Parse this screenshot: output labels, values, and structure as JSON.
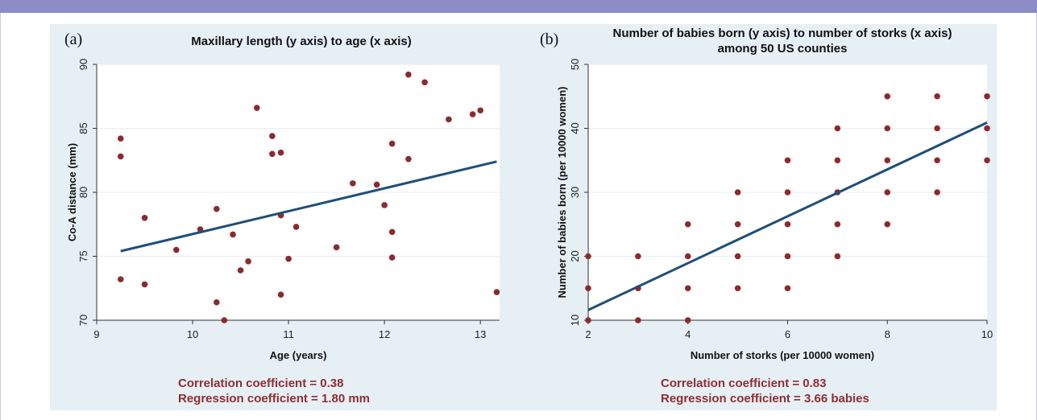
{
  "chart_data": [
    {
      "type": "scatter",
      "panel_label": "(a)",
      "title": "Maxillary length (y axis) to age (x axis)",
      "xlabel": "Age (years)",
      "ylabel": "Co-A distance (mm)",
      "xlim": [
        9,
        13.2
      ],
      "ylim": [
        70,
        90
      ],
      "x_ticks": [
        9,
        10,
        11,
        12,
        13
      ],
      "y_ticks": [
        70,
        75,
        80,
        85,
        90
      ],
      "grid": true,
      "points": [
        [
          9.25,
          84.2
        ],
        [
          9.25,
          82.8
        ],
        [
          9.25,
          73.2
        ],
        [
          9.5,
          78.0
        ],
        [
          9.5,
          72.8
        ],
        [
          9.83,
          75.5
        ],
        [
          10.08,
          77.1
        ],
        [
          10.25,
          78.7
        ],
        [
          10.25,
          71.4
        ],
        [
          10.33,
          70.0
        ],
        [
          10.42,
          76.7
        ],
        [
          10.5,
          73.9
        ],
        [
          10.58,
          74.6
        ],
        [
          10.67,
          86.6
        ],
        [
          10.83,
          84.4
        ],
        [
          10.83,
          83.0
        ],
        [
          10.92,
          83.1
        ],
        [
          10.92,
          78.2
        ],
        [
          10.92,
          72.0
        ],
        [
          11.0,
          74.8
        ],
        [
          11.08,
          77.3
        ],
        [
          11.5,
          75.7
        ],
        [
          11.67,
          80.7
        ],
        [
          11.92,
          80.6
        ],
        [
          12.0,
          79.0
        ],
        [
          12.08,
          83.8
        ],
        [
          12.08,
          76.9
        ],
        [
          12.08,
          74.9
        ],
        [
          12.25,
          89.2
        ],
        [
          12.25,
          82.6
        ],
        [
          12.42,
          88.6
        ],
        [
          12.67,
          85.7
        ],
        [
          12.92,
          86.1
        ],
        [
          13.0,
          86.4
        ],
        [
          13.17,
          72.2
        ]
      ],
      "fit_line": {
        "x": [
          9.25,
          13.17
        ],
        "y": [
          75.4,
          82.4
        ]
      },
      "annotations": [
        "Correlation coefficient = 0.38",
        "Regression coefficient = 1.80 mm"
      ],
      "colors": {
        "points": "#8b2a2e",
        "line": "#1f4e79"
      }
    },
    {
      "type": "scatter",
      "panel_label": "(b)",
      "title_lines": [
        "Number of babies born (y axis) to number of storks (x axis)",
        "among 50 US counties"
      ],
      "xlabel": "Number of storks (per 10000 women)",
      "ylabel": "Number of babies born (per 10000 women)",
      "xlim": [
        2,
        10
      ],
      "ylim": [
        10,
        50
      ],
      "x_ticks": [
        2,
        4,
        6,
        8,
        10
      ],
      "y_ticks": [
        10,
        20,
        30,
        40,
        50
      ],
      "grid": true,
      "points": [
        [
          2,
          10
        ],
        [
          2,
          15
        ],
        [
          2,
          20
        ],
        [
          3,
          10
        ],
        [
          3,
          15
        ],
        [
          3,
          20
        ],
        [
          4,
          10
        ],
        [
          4,
          15
        ],
        [
          4,
          20
        ],
        [
          4,
          25
        ],
        [
          5,
          15
        ],
        [
          5,
          20
        ],
        [
          5,
          25
        ],
        [
          5,
          30
        ],
        [
          6,
          15
        ],
        [
          6,
          20
        ],
        [
          6,
          25
        ],
        [
          6,
          30
        ],
        [
          6,
          35
        ],
        [
          7,
          20
        ],
        [
          7,
          25
        ],
        [
          7,
          30
        ],
        [
          7,
          35
        ],
        [
          7,
          40
        ],
        [
          8,
          25
        ],
        [
          8,
          30
        ],
        [
          8,
          35
        ],
        [
          8,
          40
        ],
        [
          8,
          45
        ],
        [
          9,
          30
        ],
        [
          9,
          35
        ],
        [
          9,
          40
        ],
        [
          9,
          45
        ],
        [
          10,
          35
        ],
        [
          10,
          40
        ],
        [
          10,
          45
        ]
      ],
      "fit_line": {
        "x": [
          2,
          10
        ],
        "y": [
          11.6,
          40.9
        ]
      },
      "annotations": [
        "Correlation coefficient = 0.83",
        "Regression coefficient = 3.66 babies"
      ],
      "colors": {
        "points": "#8b2a2e",
        "line": "#1f4e79"
      }
    }
  ]
}
